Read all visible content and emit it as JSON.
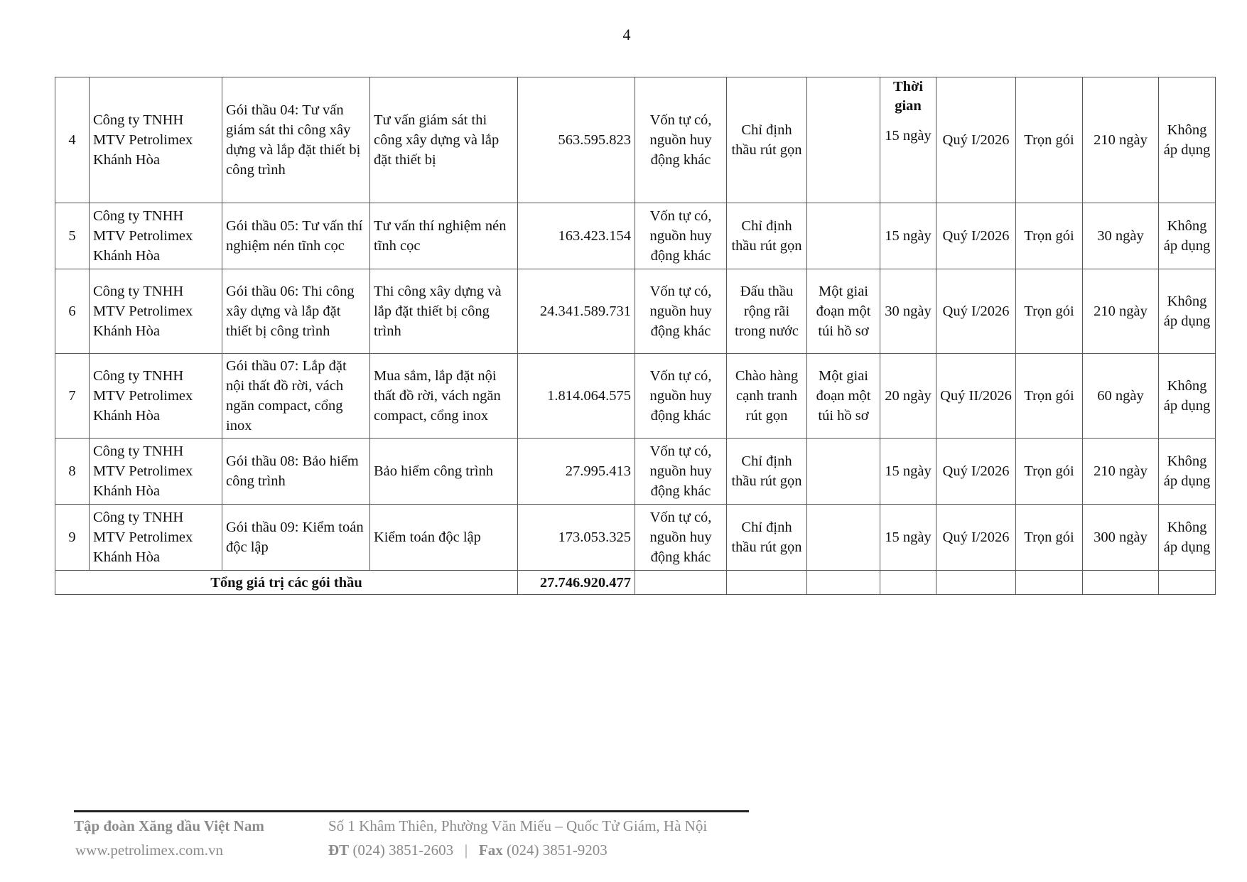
{
  "page_number": "4",
  "header_fragment": "Thời gian",
  "rows": [
    {
      "stt": "4",
      "owner": "Công ty TNHH MTV Petrolimex Khánh Hòa",
      "package": "Gói thầu 04: Tư vấn giám sát thi công xây dựng và lắp đặt thiết bị công trình",
      "scope": "Tư vấn giám sát thi công xây dựng và lắp đặt thiết bị",
      "price": "563.595.823",
      "fund": "Vốn tự có, nguồn huy động khác",
      "method": "Chỉ định thầu rút gọn",
      "procedure": "",
      "duration": "15 ngày",
      "start": "Quý I/2026",
      "contract": "Trọn gói",
      "exec": "210 ngày",
      "other": "Không áp dụng"
    },
    {
      "stt": "5",
      "owner": "Công ty TNHH MTV Petrolimex Khánh Hòa",
      "package": "Gói thầu 05: Tư vấn thí nghiệm nén tĩnh cọc",
      "scope": "Tư vấn thí nghiệm nén tĩnh cọc",
      "price": "163.423.154",
      "fund": "Vốn tự có, nguồn huy động khác",
      "method": "Chỉ định thầu rút gọn",
      "procedure": "",
      "duration": "15 ngày",
      "start": "Quý I/2026",
      "contract": "Trọn gói",
      "exec": "30 ngày",
      "other": "Không áp dụng"
    },
    {
      "stt": "6",
      "owner": "Công ty TNHH MTV Petrolimex Khánh Hòa",
      "package": "Gói thầu 06: Thi công xây dựng và lắp đặt thiết bị công trình",
      "scope": "Thi công xây dựng và lắp đặt thiết bị công trình",
      "price": "24.341.589.731",
      "fund": "Vốn tự có, nguồn huy động khác",
      "method": "Đấu thầu rộng rãi trong nước",
      "procedure": "Một giai đoạn một túi hồ sơ",
      "duration": "30 ngày",
      "start": "Quý I/2026",
      "contract": "Trọn gói",
      "exec": "210 ngày",
      "other": "Không áp dụng"
    },
    {
      "stt": "7",
      "owner": "Công ty TNHH MTV Petrolimex Khánh Hòa",
      "package": "Gói thầu 07: Lắp đặt nội thất đồ  rời, vách ngăn compact, cổng inox",
      "scope": "Mua sắm, lắp đặt nội thất đồ rời, vách ngăn compact, cổng inox",
      "price": "1.814.064.575",
      "fund": "Vốn tự có, nguồn huy động khác",
      "method": "Chào hàng cạnh tranh rút gọn",
      "procedure": "Một giai đoạn một túi hồ sơ",
      "duration": "20 ngày",
      "start": "Quý II/2026",
      "contract": "Trọn gói",
      "exec": "60 ngày",
      "other": "Không áp dụng"
    },
    {
      "stt": "8",
      "owner": "Công ty TNHH MTV Petrolimex Khánh Hòa",
      "package": "Gói thầu 08: Bảo hiểm công trình",
      "scope": "Bảo hiểm công trình",
      "price": "27.995.413",
      "fund": "Vốn tự có, nguồn huy động khác",
      "method": "Chỉ định thầu rút gọn",
      "procedure": "",
      "duration": "15 ngày",
      "start": "Quý I/2026",
      "contract": "Trọn gói",
      "exec": "210 ngày",
      "other": "Không áp dụng"
    },
    {
      "stt": "9",
      "owner": "Công ty TNHH MTV Petrolimex Khánh Hòa",
      "package": "Gói thầu 09: Kiểm toán độc lập",
      "scope": "Kiểm toán độc lập",
      "price": "173.053.325",
      "fund": "Vốn tự có, nguồn huy động khác",
      "method": "Chỉ định thầu rút gọn",
      "procedure": "",
      "duration": "15 ngày",
      "start": "Quý I/2026",
      "contract": "Trọn gói",
      "exec": "300 ngày",
      "other": "Không áp dụng"
    }
  ],
  "total": {
    "label": "Tổng giá trị các gói thầu",
    "value": "27.746.920.477"
  },
  "footer": {
    "org": "Tập đoàn Xăng dầu Việt Nam",
    "website": "www.petrolimex.com.vn",
    "address": "Số 1 Khâm Thiên, Phường Văn Miếu – Quốc Tử Giám, Hà Nội",
    "phone_label": "ĐT",
    "phone": "(024) 3851-2603",
    "separator": "|",
    "fax_label": "Fax",
    "fax": "(024) 3851-9203"
  }
}
